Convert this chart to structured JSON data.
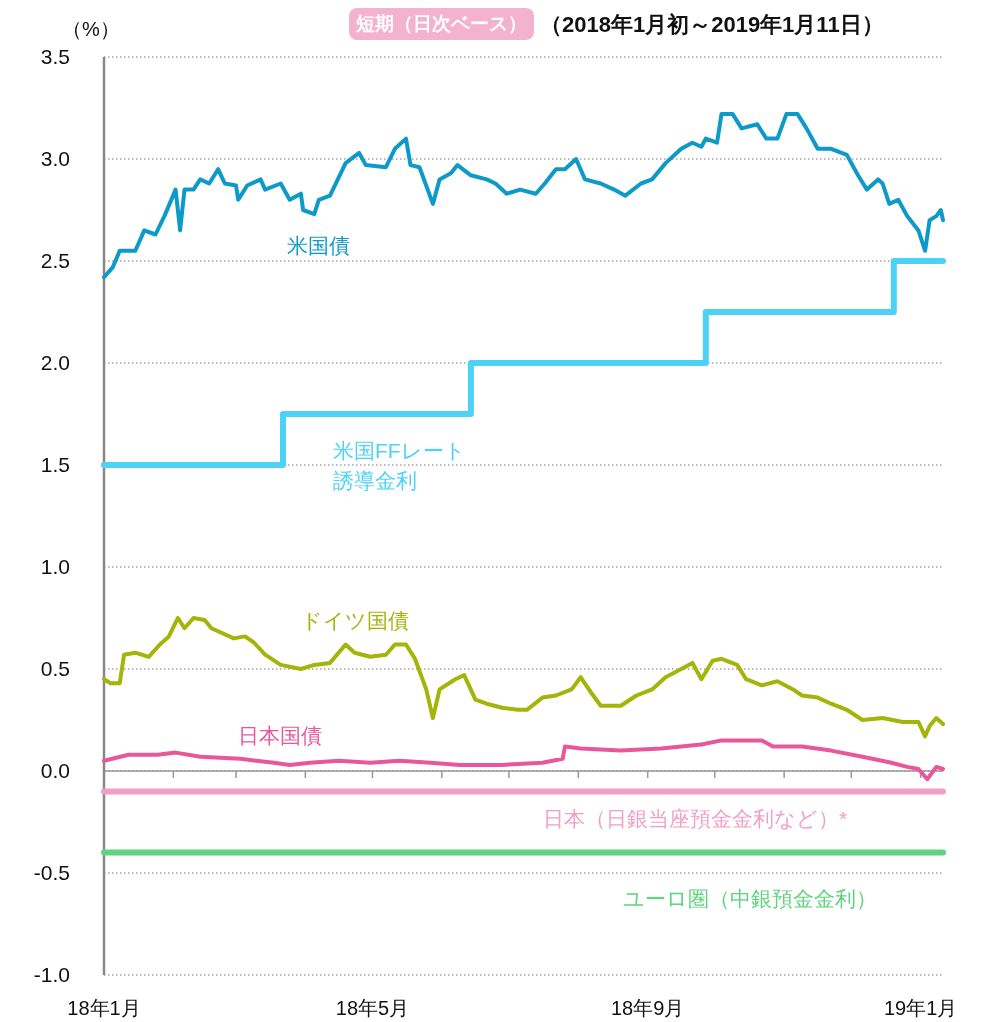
{
  "chart_data": {
    "type": "line",
    "title": "短期（日次ベース）",
    "subtitle": "（2018年1月初～2019年1月11日）",
    "ylabel": "（%）",
    "xlim": [
      "2018-01-01",
      "2019-01-11"
    ],
    "ylim": [
      -1.0,
      3.5
    ],
    "yticks": [
      {
        "value": 3.5,
        "label": "3.5"
      },
      {
        "value": 3.0,
        "label": "3.0"
      },
      {
        "value": 2.5,
        "label": "2.5"
      },
      {
        "value": 2.0,
        "label": "2.0"
      },
      {
        "value": 1.5,
        "label": "1.5"
      },
      {
        "value": 1.0,
        "label": "1.0"
      },
      {
        "value": 0.5,
        "label": "0.5"
      },
      {
        "value": 0.0,
        "label": "0.0"
      },
      {
        "value": -0.5,
        "label": "-0.5"
      },
      {
        "value": -1.0,
        "label": "-1.0"
      }
    ],
    "xticks": [
      {
        "value": "2018-01-01",
        "label": "18年1月"
      },
      {
        "value": "2018-02-01",
        "label": null
      },
      {
        "value": "2018-03-01",
        "label": null
      },
      {
        "value": "2018-04-01",
        "label": null
      },
      {
        "value": "2018-05-01",
        "label": "18年5月"
      },
      {
        "value": "2018-06-01",
        "label": null
      },
      {
        "value": "2018-07-01",
        "label": null
      },
      {
        "value": "2018-08-01",
        "label": null
      },
      {
        "value": "2018-09-01",
        "label": "18年9月"
      },
      {
        "value": "2018-10-01",
        "label": null
      },
      {
        "value": "2018-11-01",
        "label": null
      },
      {
        "value": "2018-12-01",
        "label": null
      },
      {
        "value": "2019-01-01",
        "label": "19年1月"
      }
    ],
    "grid": "y",
    "marker": "none",
    "line_style": "solid",
    "series": [
      {
        "name": "米国債",
        "color": "#0e9ac8",
        "x": [
          "2018-01-01",
          "2018-01-05",
          "2018-01-08",
          "2018-01-15",
          "2018-01-19",
          "2018-01-24",
          "2018-01-28",
          "2018-02-02",
          "2018-02-04",
          "2018-02-06",
          "2018-02-10",
          "2018-02-13",
          "2018-02-17",
          "2018-02-21",
          "2018-02-24",
          "2018-03-01",
          "2018-03-02",
          "2018-03-06",
          "2018-03-12",
          "2018-03-14",
          "2018-03-21",
          "2018-03-25",
          "2018-03-30",
          "2018-03-31",
          "2018-04-05",
          "2018-04-07",
          "2018-04-12",
          "2018-04-19",
          "2018-04-25",
          "2018-04-28",
          "2018-05-07",
          "2018-05-11",
          "2018-05-16",
          "2018-05-18",
          "2018-05-22",
          "2018-05-28",
          "2018-05-31",
          "2018-06-05",
          "2018-06-08",
          "2018-06-14",
          "2018-06-21",
          "2018-06-25",
          "2018-06-30",
          "2018-07-06",
          "2018-07-13",
          "2018-07-17",
          "2018-07-22",
          "2018-07-26",
          "2018-07-31",
          "2018-08-04",
          "2018-08-11",
          "2018-08-17",
          "2018-08-22",
          "2018-08-29",
          "2018-09-03",
          "2018-09-09",
          "2018-09-16",
          "2018-09-21",
          "2018-09-25",
          "2018-09-27",
          "2018-10-02",
          "2018-10-04",
          "2018-10-09",
          "2018-10-13",
          "2018-10-20",
          "2018-10-24",
          "2018-10-29",
          "2018-11-02",
          "2018-11-07",
          "2018-11-11",
          "2018-11-16",
          "2018-11-22",
          "2018-11-29",
          "2018-12-04",
          "2018-12-08",
          "2018-12-13",
          "2018-12-15",
          "2018-12-18",
          "2018-12-22",
          "2018-12-26",
          "2018-12-31",
          "2019-01-03",
          "2019-01-05",
          "2019-01-08",
          "2019-01-10",
          "2019-01-11"
        ],
        "values": [
          2.42,
          2.47,
          2.55,
          2.55,
          2.65,
          2.63,
          2.72,
          2.85,
          2.65,
          2.85,
          2.85,
          2.9,
          2.88,
          2.95,
          2.88,
          2.87,
          2.8,
          2.87,
          2.9,
          2.85,
          2.88,
          2.8,
          2.83,
          2.75,
          2.73,
          2.8,
          2.82,
          2.98,
          3.03,
          2.97,
          2.96,
          3.05,
          3.1,
          2.97,
          2.96,
          2.78,
          2.9,
          2.93,
          2.97,
          2.92,
          2.9,
          2.88,
          2.83,
          2.85,
          2.83,
          2.88,
          2.95,
          2.95,
          3.0,
          2.9,
          2.88,
          2.85,
          2.82,
          2.88,
          2.9,
          2.98,
          3.05,
          3.08,
          3.06,
          3.1,
          3.08,
          3.22,
          3.22,
          3.15,
          3.17,
          3.1,
          3.1,
          3.22,
          3.22,
          3.15,
          3.05,
          3.05,
          3.02,
          2.92,
          2.85,
          2.9,
          2.88,
          2.78,
          2.8,
          2.72,
          2.65,
          2.55,
          2.7,
          2.72,
          2.75,
          2.7
        ]
      },
      {
        "name": "米国FFレート誘導金利",
        "type": "step",
        "color": "#4dd2f5",
        "x": [
          "2018-01-01",
          "2018-03-22",
          "2018-06-14",
          "2018-09-27",
          "2018-12-20",
          "2019-01-11"
        ],
        "values": [
          1.5,
          1.75,
          2.0,
          2.25,
          2.5,
          2.5
        ]
      },
      {
        "name": "ドイツ国債",
        "color": "#a3b509",
        "x": [
          "2018-01-01",
          "2018-01-04",
          "2018-01-08",
          "2018-01-10",
          "2018-01-15",
          "2018-01-21",
          "2018-01-26",
          "2018-01-30",
          "2018-02-03",
          "2018-02-06",
          "2018-02-10",
          "2018-02-15",
          "2018-02-18",
          "2018-02-22",
          "2018-02-28",
          "2018-03-05",
          "2018-03-09",
          "2018-03-14",
          "2018-03-21",
          "2018-03-30",
          "2018-04-05",
          "2018-04-12",
          "2018-04-19",
          "2018-04-23",
          "2018-04-30",
          "2018-05-07",
          "2018-05-11",
          "2018-05-16",
          "2018-05-20",
          "2018-05-25",
          "2018-05-28",
          "2018-05-31",
          "2018-06-07",
          "2018-06-11",
          "2018-06-16",
          "2018-06-21",
          "2018-06-28",
          "2018-07-05",
          "2018-07-09",
          "2018-07-16",
          "2018-07-22",
          "2018-07-29",
          "2018-08-02",
          "2018-08-07",
          "2018-08-11",
          "2018-08-20",
          "2018-08-27",
          "2018-09-03",
          "2018-09-09",
          "2018-09-16",
          "2018-09-21",
          "2018-09-25",
          "2018-09-30",
          "2018-10-04",
          "2018-10-11",
          "2018-10-15",
          "2018-10-22",
          "2018-10-29",
          "2018-11-05",
          "2018-11-09",
          "2018-11-16",
          "2018-11-22",
          "2018-11-29",
          "2018-12-06",
          "2018-12-15",
          "2018-12-24",
          "2018-12-31",
          "2019-01-03",
          "2019-01-05",
          "2019-01-08",
          "2019-01-11"
        ],
        "values": [
          0.45,
          0.43,
          0.43,
          0.57,
          0.58,
          0.56,
          0.62,
          0.66,
          0.75,
          0.7,
          0.75,
          0.74,
          0.7,
          0.68,
          0.65,
          0.66,
          0.63,
          0.57,
          0.52,
          0.5,
          0.52,
          0.53,
          0.62,
          0.58,
          0.56,
          0.57,
          0.62,
          0.62,
          0.55,
          0.4,
          0.26,
          0.4,
          0.45,
          0.47,
          0.35,
          0.33,
          0.31,
          0.3,
          0.3,
          0.36,
          0.37,
          0.4,
          0.46,
          0.38,
          0.32,
          0.32,
          0.37,
          0.4,
          0.46,
          0.5,
          0.53,
          0.45,
          0.54,
          0.55,
          0.52,
          0.45,
          0.42,
          0.44,
          0.4,
          0.37,
          0.36,
          0.33,
          0.3,
          0.25,
          0.26,
          0.24,
          0.24,
          0.17,
          0.22,
          0.26,
          0.23
        ]
      },
      {
        "name": "日本国債",
        "color": "#e8579a",
        "x": [
          "2018-01-01",
          "2018-01-12",
          "2018-01-25",
          "2018-02-02",
          "2018-02-13",
          "2018-03-03",
          "2018-03-18",
          "2018-03-25",
          "2018-04-03",
          "2018-04-16",
          "2018-04-30",
          "2018-05-13",
          "2018-05-27",
          "2018-06-09",
          "2018-06-28",
          "2018-07-16",
          "2018-07-25",
          "2018-07-26",
          "2018-08-02",
          "2018-08-20",
          "2018-09-07",
          "2018-09-25",
          "2018-10-04",
          "2018-10-22",
          "2018-10-27",
          "2018-11-09",
          "2018-11-22",
          "2018-12-06",
          "2018-12-19",
          "2018-12-26",
          "2018-12-31",
          "2019-01-04",
          "2019-01-08",
          "2019-01-11"
        ],
        "values": [
          0.05,
          0.08,
          0.08,
          0.09,
          0.07,
          0.06,
          0.04,
          0.03,
          0.04,
          0.05,
          0.04,
          0.05,
          0.04,
          0.03,
          0.03,
          0.04,
          0.06,
          0.12,
          0.11,
          0.1,
          0.11,
          0.13,
          0.15,
          0.15,
          0.12,
          0.12,
          0.1,
          0.07,
          0.04,
          0.02,
          0.01,
          -0.04,
          0.02,
          0.01
        ]
      },
      {
        "name": "日本（日銀当座預金金利など）*",
        "color": "#f0a0c4",
        "x": [
          "2018-01-01",
          "2019-01-11"
        ],
        "values": [
          -0.1,
          -0.1
        ]
      },
      {
        "name": "ユーロ圏（中銀預金金利）",
        "color": "#5fd37e",
        "x": [
          "2018-01-01",
          "2019-01-11"
        ],
        "values": [
          -0.4,
          -0.4
        ]
      }
    ]
  }
}
